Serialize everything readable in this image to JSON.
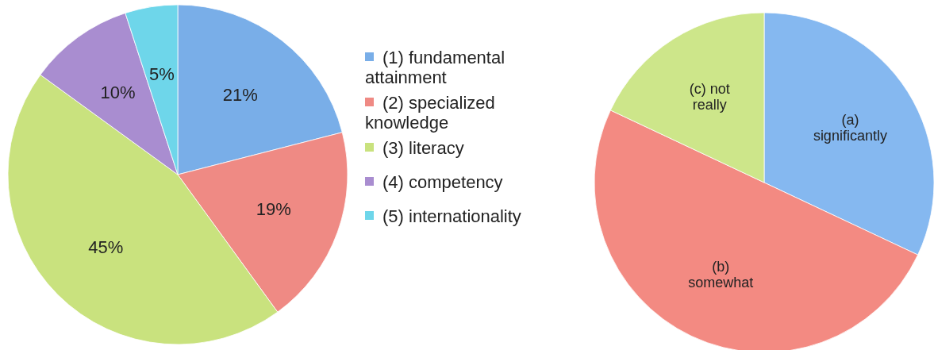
{
  "chart_data": [
    {
      "type": "pie",
      "categories": [
        "(1) fundamental attainment",
        "(2) specialized knowledge",
        "(3) literacy",
        "(4) competency",
        "(5) internationality"
      ],
      "values": [
        21,
        19,
        45,
        10,
        5
      ],
      "value_labels": [
        "21%",
        "19%",
        "45%",
        "10%",
        "5%"
      ],
      "colors": [
        "#79aee8",
        "#ef8a84",
        "#c9e27e",
        "#a98dd0",
        "#6ed6ea"
      ],
      "legend": "right"
    },
    {
      "type": "pie",
      "categories": [
        "(a) significantly",
        "(b) somewhat",
        "(c) not really"
      ],
      "values": [
        32,
        50,
        18
      ],
      "colors": [
        "#85b8f0",
        "#f38a82",
        "#cde68a"
      ],
      "legend": false
    }
  ]
}
